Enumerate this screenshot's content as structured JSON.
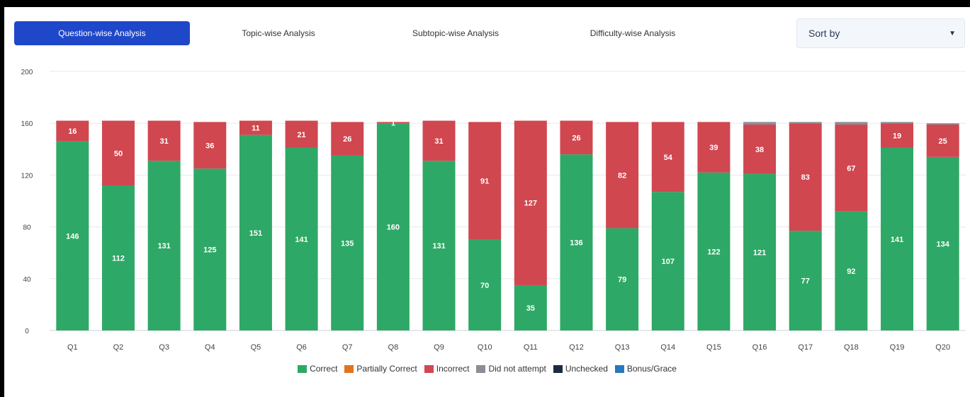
{
  "tabs": [
    {
      "label": "Question-wise Analysis",
      "active": true
    },
    {
      "label": "Topic-wise Analysis",
      "active": false
    },
    {
      "label": "Subtopic-wise Analysis",
      "active": false
    },
    {
      "label": "Difficulty-wise Analysis",
      "active": false
    }
  ],
  "sort": {
    "label": "Sort by",
    "icon": "caret-down-icon"
  },
  "colors": {
    "correct": "#2ea866",
    "partially_correct": "#e0731c",
    "incorrect": "#d04750",
    "did_not_attempt": "#8a8f95",
    "unchecked": "#1b2a44",
    "bonus_grace": "#2878c0",
    "active_tab": "#1f47c9"
  },
  "chart_data": {
    "type": "bar",
    "stacked": true,
    "categories": [
      "Q1",
      "Q2",
      "Q3",
      "Q4",
      "Q5",
      "Q6",
      "Q7",
      "Q8",
      "Q9",
      "Q10",
      "Q11",
      "Q12",
      "Q13",
      "Q14",
      "Q15",
      "Q16",
      "Q17",
      "Q18",
      "Q19",
      "Q20"
    ],
    "series": [
      {
        "name": "Correct",
        "color_key": "correct",
        "values": [
          146,
          112,
          131,
          125,
          151,
          141,
          135,
          160,
          131,
          70,
          35,
          136,
          79,
          107,
          122,
          121,
          77,
          92,
          141,
          134
        ]
      },
      {
        "name": "Partially Correct",
        "color_key": "partially_correct",
        "values": [
          0,
          0,
          0,
          0,
          0,
          0,
          0,
          0,
          0,
          0,
          0,
          0,
          0,
          0,
          0,
          0,
          0,
          0,
          0,
          0
        ]
      },
      {
        "name": "Incorrect",
        "color_key": "incorrect",
        "values": [
          16,
          50,
          31,
          36,
          11,
          21,
          26,
          1,
          31,
          91,
          127,
          26,
          82,
          54,
          39,
          38,
          83,
          67,
          19,
          25
        ]
      },
      {
        "name": "Did not attempt",
        "color_key": "did_not_attempt",
        "values": [
          0,
          0,
          0,
          0,
          0,
          0,
          0,
          0,
          0,
          0,
          0,
          0,
          0,
          0,
          0,
          2,
          1,
          2,
          1,
          1
        ]
      },
      {
        "name": "Unchecked",
        "color_key": "unchecked",
        "values": [
          0,
          0,
          0,
          0,
          0,
          0,
          0,
          0,
          0,
          0,
          0,
          0,
          0,
          0,
          0,
          0,
          0,
          0,
          0,
          0
        ]
      },
      {
        "name": "Bonus/Grace",
        "color_key": "bonus_grace",
        "values": [
          0,
          0,
          0,
          0,
          0,
          0,
          0,
          0,
          0,
          0,
          0,
          0,
          0,
          0,
          0,
          0,
          0,
          0,
          0,
          0
        ]
      }
    ],
    "ylim": [
      0,
      200
    ],
    "yticks": [
      0,
      40,
      80,
      120,
      160,
      200
    ],
    "grid": true,
    "legend_position": "bottom",
    "show_labels_for": [
      "Correct",
      "Incorrect"
    ],
    "title": "",
    "xlabel": "",
    "ylabel": ""
  }
}
